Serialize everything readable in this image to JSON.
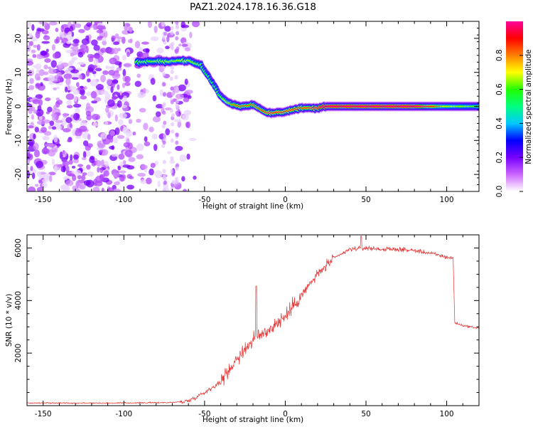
{
  "title": "PAZ1.2024.178.16.36.G18",
  "chart_data": [
    {
      "type": "heatmap",
      "xlabel": "Height of straight line (km)",
      "ylabel": "Frequency (Hz)",
      "xlim": [
        -160,
        120
      ],
      "ylim": [
        -25,
        25
      ],
      "x_ticks": [
        -150,
        -100,
        -50,
        0,
        50,
        100
      ],
      "y_ticks": [
        -20,
        -10,
        0,
        10,
        20
      ],
      "colorbar": {
        "label": "Normalized spectral amplitude",
        "range": [
          0,
          1
        ],
        "ticks": [
          0.0,
          0.2,
          0.4,
          0.6,
          0.8
        ],
        "colors": [
          "#ffffff",
          "#cc66ff",
          "#7700ff",
          "#0000ff",
          "#00c8ff",
          "#00ff7f",
          "#22ff00",
          "#ffff00",
          "#ff8000",
          "#ff0000",
          "#ff0099"
        ]
      },
      "ridge": [
        {
          "x": -92,
          "y": 13,
          "amp": 0.5
        },
        {
          "x": -60,
          "y": 13.5,
          "amp": 0.55
        },
        {
          "x": -52,
          "y": 12,
          "amp": 0.5
        },
        {
          "x": -45,
          "y": 7,
          "amp": 0.45
        },
        {
          "x": -40,
          "y": 3,
          "amp": 0.5
        },
        {
          "x": -35,
          "y": 1,
          "amp": 0.6
        },
        {
          "x": -28,
          "y": 0,
          "amp": 0.7
        },
        {
          "x": -20,
          "y": 0.5,
          "amp": 0.65
        },
        {
          "x": -10,
          "y": -2,
          "amp": 0.75
        },
        {
          "x": 0,
          "y": -1.5,
          "amp": 0.75
        },
        {
          "x": 10,
          "y": -0.5,
          "amp": 0.7
        },
        {
          "x": 20,
          "y": -0.5,
          "amp": 0.8
        },
        {
          "x": 25,
          "y": 0,
          "amp": 0.95
        },
        {
          "x": 80,
          "y": 0,
          "amp": 0.95
        },
        {
          "x": 100,
          "y": 0,
          "amp": 0.55
        },
        {
          "x": 120,
          "y": 0,
          "amp": 0.5
        }
      ]
    },
    {
      "type": "line",
      "xlabel": "Height of straight line (km)",
      "ylabel": "SNR (10 * v/v)",
      "xlim": [
        -160,
        120
      ],
      "ylim": [
        0,
        6500
      ],
      "x_ticks": [
        -150,
        -100,
        -50,
        0,
        50,
        100
      ],
      "y_ticks": [
        2000,
        4000,
        6000
      ],
      "color": "#e83030",
      "trend": {
        "x": [
          -160,
          -100,
          -70,
          -60,
          -50,
          -40,
          -30,
          -20,
          -10,
          0,
          10,
          20,
          30,
          40,
          50,
          60,
          70,
          80,
          90,
          100,
          104,
          105,
          110,
          120
        ],
        "y": [
          100,
          100,
          120,
          180,
          500,
          900,
          1800,
          2500,
          2900,
          3400,
          4200,
          5000,
          5600,
          5950,
          6000,
          5950,
          5950,
          5900,
          5800,
          5650,
          5600,
          3150,
          3050,
          2950
        ]
      },
      "peaks": [
        {
          "x": -18,
          "y": 4550
        },
        {
          "x": 47,
          "y": 6450
        }
      ]
    }
  ]
}
